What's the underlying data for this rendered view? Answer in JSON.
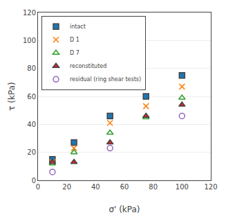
{
  "chart_data": {
    "type": "scatter",
    "x": [
      10,
      25,
      50,
      75,
      100
    ],
    "series": [
      {
        "name": "intact",
        "marker": "square",
        "values": [
          15,
          27,
          46,
          60,
          75
        ]
      },
      {
        "name": "D 1",
        "marker": "x",
        "values": [
          13,
          23,
          41,
          53,
          67
        ]
      },
      {
        "name": "D 7",
        "marker": "triangle-open",
        "values": [
          12,
          20,
          34,
          45,
          59
        ]
      },
      {
        "name": "reconstituted",
        "marker": "triangle",
        "values": [
          13,
          13,
          27,
          46,
          54
        ]
      },
      {
        "name": "residual (ring shear tests)",
        "marker": "circle-open",
        "values": [
          6,
          null,
          23,
          null,
          46
        ]
      }
    ],
    "x_label": "σ' (kPa)",
    "y_label": "τ (kPa)",
    "xlim": [
      0,
      120
    ],
    "ylim": [
      0,
      120
    ],
    "xticks": [
      0,
      20,
      40,
      60,
      80,
      100,
      120
    ],
    "yticks": [
      0,
      20,
      40,
      60,
      80,
      100,
      120
    ],
    "grid": "y",
    "legend": "upper left"
  }
}
